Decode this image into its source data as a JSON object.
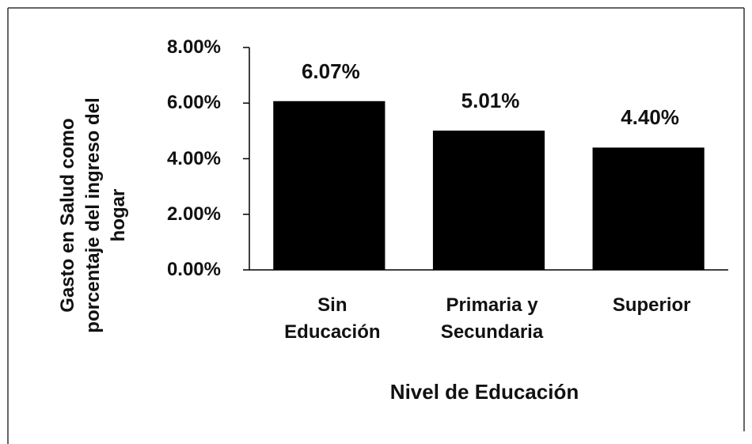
{
  "chart_data": {
    "type": "bar",
    "x_label": "Nivel de Educación",
    "y_label": "Gasto en Salud como\nporcentaje del ingreso del\nhogar",
    "categories": [
      "Sin\nEducación",
      "Primaria y\nSecundaria",
      "Superior"
    ],
    "values": [
      6.07,
      5.01,
      4.4
    ],
    "value_labels": [
      "6.07%",
      "5.01%",
      "4.40%"
    ],
    "color": "#000000",
    "ylim": [
      0,
      8
    ],
    "yticks": [
      {
        "value": 0,
        "label": "0.00%"
      },
      {
        "value": 2,
        "label": "2.00%"
      },
      {
        "value": 4,
        "label": "4.00%"
      },
      {
        "value": 6,
        "label": "6.00%"
      },
      {
        "value": 8,
        "label": "8.00%"
      }
    ],
    "grid": false
  }
}
